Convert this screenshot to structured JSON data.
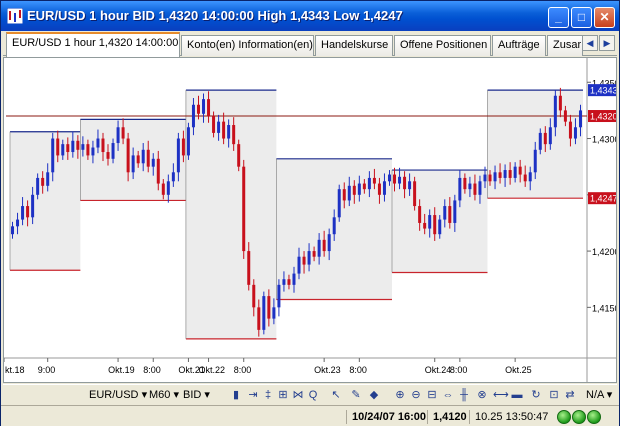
{
  "window": {
    "title": "EUR/USD 1 hour BID 1,4320 14:00:00 High 1,4343 Low 1,4247",
    "min_btn": "_",
    "max_btn": "□",
    "close_btn": "✕"
  },
  "tabs": [
    {
      "label": "EUR/USD 1 hour 1,4320 14:00:00",
      "active": true
    },
    {
      "label": "Konto(en) Information(en)",
      "active": false
    },
    {
      "label": "Handelskurse",
      "active": false
    },
    {
      "label": "Offene Positionen",
      "active": false
    },
    {
      "label": "Aufträge",
      "active": false
    },
    {
      "label": "Zusar",
      "active": false
    }
  ],
  "tab_scroll": {
    "left": "◀",
    "right": "▶"
  },
  "toolbar": {
    "instrument": "EUR/USD",
    "period": "M60",
    "side": "BID",
    "mode": "N/A",
    "icons": [
      "bar-chart-icon",
      "line-chart-icon",
      "crosshair-icon",
      "zoom-in-icon",
      "zoom-out-icon",
      "fibonacci-icon",
      "channel-icon",
      "cursor-icon",
      "pencil-icon",
      "grid-icon",
      "candle-icon",
      "area-icon",
      "refresh-icon"
    ]
  },
  "status": {
    "datetime": "10/24/07 16:00",
    "price": "1,4120",
    "server_time": "10.25 13:50:47"
  },
  "colors": {
    "bull": "#1d31c4",
    "bear": "#c8101c",
    "box_high": "#1a2a8c",
    "box_low": "#c8242c",
    "current_line": "#8b1a10",
    "label_blue": "#1d31c4",
    "label_red": "#c8101c"
  },
  "chart_data": {
    "type": "candlestick",
    "y_ticks": [
      "1,4350",
      "1,4300",
      "1,4250",
      "1,4200",
      "1,4150"
    ],
    "y_tick_values": [
      1.435,
      1.43,
      1.425,
      1.42,
      1.415
    ],
    "x_ticks": [
      "kt.18",
      "9:00",
      "Okt.19",
      "8:00",
      "Okt.21",
      "Okt.22",
      "8:00",
      "Okt.23",
      "8:00",
      "Okt.24",
      "8:00",
      "Okt.25"
    ],
    "price_labels": [
      {
        "text": "1,4343",
        "value": 1.4343,
        "color": "blue"
      },
      {
        "text": "1,4320",
        "value": 1.432,
        "color": "red"
      },
      {
        "text": "1,4247",
        "value": 1.4247,
        "color": "red"
      }
    ],
    "y_range": [
      1.4105,
      1.4368
    ],
    "current_price": 1.432,
    "daily_ranges": [
      {
        "start": 0,
        "end": 14,
        "high": 1.4306,
        "low": 1.4183
      },
      {
        "start": 14,
        "end": 35,
        "high": 1.4317,
        "low": 1.4245
      },
      {
        "start": 35,
        "end": 53,
        "high": 1.4343,
        "low": 1.4122
      },
      {
        "start": 53,
        "end": 76,
        "high": 1.4282,
        "low": 1.4157
      },
      {
        "start": 76,
        "end": 95,
        "high": 1.4272,
        "low": 1.4181
      },
      {
        "start": 95,
        "end": 119,
        "high": 1.4343,
        "low": 1.4247
      }
    ],
    "candles": [
      [
        1.4215,
        1.4222
      ],
      [
        1.4222,
        1.4228
      ],
      [
        1.4228,
        1.424
      ],
      [
        1.424,
        1.423
      ],
      [
        1.423,
        1.425
      ],
      [
        1.425,
        1.4265
      ],
      [
        1.4265,
        1.4258
      ],
      [
        1.4258,
        1.427
      ],
      [
        1.427,
        1.43
      ],
      [
        1.43,
        1.4285
      ],
      [
        1.4285,
        1.4295
      ],
      [
        1.4295,
        1.4288
      ],
      [
        1.4288,
        1.4298
      ],
      [
        1.4298,
        1.429
      ],
      [
        1.429,
        1.4295
      ],
      [
        1.4295,
        1.4285
      ],
      [
        1.4285,
        1.4292
      ],
      [
        1.4292,
        1.43
      ],
      [
        1.43,
        1.4288
      ],
      [
        1.4288,
        1.4282
      ],
      [
        1.4282,
        1.4296
      ],
      [
        1.4296,
        1.431
      ],
      [
        1.431,
        1.43
      ],
      [
        1.43,
        1.427
      ],
      [
        1.427,
        1.4285
      ],
      [
        1.4285,
        1.4278
      ],
      [
        1.4278,
        1.429
      ],
      [
        1.429,
        1.4275
      ],
      [
        1.4275,
        1.4282
      ],
      [
        1.4282,
        1.426
      ],
      [
        1.426,
        1.425
      ],
      [
        1.425,
        1.4262
      ],
      [
        1.4262,
        1.427
      ],
      [
        1.427,
        1.43
      ],
      [
        1.43,
        1.4285
      ],
      [
        1.4285,
        1.431
      ],
      [
        1.431,
        1.433
      ],
      [
        1.433,
        1.4322
      ],
      [
        1.4322,
        1.4335
      ],
      [
        1.4335,
        1.432
      ],
      [
        1.432,
        1.4305
      ],
      [
        1.4305,
        1.4315
      ],
      [
        1.4315,
        1.43
      ],
      [
        1.43,
        1.4312
      ],
      [
        1.4312,
        1.4295
      ],
      [
        1.4295,
        1.4275
      ],
      [
        1.4275,
        1.42
      ],
      [
        1.42,
        1.417
      ],
      [
        1.417,
        1.415
      ],
      [
        1.415,
        1.413
      ],
      [
        1.413,
        1.416
      ],
      [
        1.416,
        1.414
      ],
      [
        1.414,
        1.415
      ],
      [
        1.415,
        1.417
      ],
      [
        1.417,
        1.4175
      ],
      [
        1.4175,
        1.417
      ],
      [
        1.417,
        1.418
      ],
      [
        1.418,
        1.4195
      ],
      [
        1.4195,
        1.4188
      ],
      [
        1.4188,
        1.42
      ],
      [
        1.42,
        1.4195
      ],
      [
        1.4195,
        1.421
      ],
      [
        1.421,
        1.42
      ],
      [
        1.42,
        1.4215
      ],
      [
        1.4215,
        1.423
      ],
      [
        1.423,
        1.4255
      ],
      [
        1.4255,
        1.4245
      ],
      [
        1.4245,
        1.4258
      ],
      [
        1.4258,
        1.425
      ],
      [
        1.425,
        1.426
      ],
      [
        1.426,
        1.4255
      ],
      [
        1.4255,
        1.4265
      ],
      [
        1.4265,
        1.426
      ],
      [
        1.426,
        1.425
      ],
      [
        1.425,
        1.4262
      ],
      [
        1.4262,
        1.4268
      ],
      [
        1.4268,
        1.426
      ],
      [
        1.426,
        1.4266
      ],
      [
        1.4266,
        1.4255
      ],
      [
        1.4255,
        1.4262
      ],
      [
        1.4262,
        1.424
      ],
      [
        1.424,
        1.4225
      ],
      [
        1.4225,
        1.422
      ],
      [
        1.422,
        1.4232
      ],
      [
        1.4232,
        1.4215
      ],
      [
        1.4215,
        1.4228
      ],
      [
        1.4228,
        1.424
      ],
      [
        1.424,
        1.4225
      ],
      [
        1.4225,
        1.4245
      ],
      [
        1.4245,
        1.4265
      ],
      [
        1.4265,
        1.4255
      ],
      [
        1.4255,
        1.426
      ],
      [
        1.426,
        1.425
      ],
      [
        1.425,
        1.4262
      ],
      [
        1.4262,
        1.4268
      ],
      [
        1.4268,
        1.4262
      ],
      [
        1.4262,
        1.427
      ],
      [
        1.427,
        1.4265
      ],
      [
        1.4265,
        1.4272
      ],
      [
        1.4272,
        1.4265
      ],
      [
        1.4265,
        1.4275
      ],
      [
        1.4275,
        1.4268
      ],
      [
        1.4268,
        1.4262
      ],
      [
        1.4262,
        1.427
      ],
      [
        1.427,
        1.429
      ],
      [
        1.429,
        1.4305
      ],
      [
        1.4305,
        1.4295
      ],
      [
        1.4295,
        1.431
      ],
      [
        1.431,
        1.4338
      ],
      [
        1.4338,
        1.4325
      ],
      [
        1.4325,
        1.4315
      ],
      [
        1.4315,
        1.43
      ],
      [
        1.43,
        1.431
      ],
      [
        1.431,
        1.4325
      ]
    ]
  }
}
